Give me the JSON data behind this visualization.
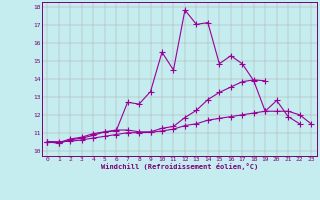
{
  "xlabel": "Windchill (Refroidissement éolien,°C)",
  "ylabel": "",
  "bg_color": "#c5ecee",
  "line_color": "#990099",
  "grid_color": "#b0b0b0",
  "axis_color": "#770077",
  "tick_label_color": "#770077",
  "xlim": [
    -0.5,
    23.5
  ],
  "ylim": [
    9.7,
    18.3
  ],
  "xticks": [
    0,
    1,
    2,
    3,
    4,
    5,
    6,
    7,
    8,
    9,
    10,
    11,
    12,
    13,
    14,
    15,
    16,
    17,
    18,
    19,
    20,
    21,
    22,
    23
  ],
  "yticks": [
    10,
    11,
    12,
    13,
    14,
    15,
    16,
    17,
    18
  ],
  "line1_x": [
    0,
    1,
    2,
    3,
    4,
    5,
    6,
    7,
    8,
    9,
    10,
    11,
    12,
    13,
    14,
    15,
    16,
    17,
    18,
    19,
    20,
    21,
    22
  ],
  "line1_y": [
    10.5,
    10.4,
    10.6,
    10.7,
    10.85,
    11.05,
    11.1,
    12.7,
    12.6,
    13.3,
    15.5,
    14.5,
    17.85,
    17.05,
    17.15,
    14.85,
    15.3,
    14.85,
    13.9,
    12.2,
    12.8,
    11.9,
    11.5
  ],
  "line2_x": [
    0,
    1,
    2,
    3,
    4,
    5,
    6,
    7,
    8,
    9,
    10,
    11,
    12,
    13,
    14,
    15,
    16,
    17,
    18,
    19
  ],
  "line2_y": [
    10.5,
    10.45,
    10.65,
    10.75,
    10.95,
    11.05,
    11.15,
    11.15,
    11.05,
    11.05,
    11.25,
    11.35,
    11.85,
    12.25,
    12.85,
    13.25,
    13.55,
    13.85,
    13.95,
    13.9
  ],
  "line3_x": [
    0,
    1,
    2,
    3,
    4,
    5,
    6,
    7,
    8,
    9,
    10,
    11,
    12,
    13,
    14,
    15,
    16,
    17,
    18,
    19,
    20,
    21,
    22,
    23
  ],
  "line3_y": [
    10.5,
    10.5,
    10.52,
    10.6,
    10.7,
    10.8,
    10.9,
    11.0,
    11.0,
    11.02,
    11.1,
    11.2,
    11.4,
    11.5,
    11.7,
    11.8,
    11.9,
    12.0,
    12.1,
    12.2,
    12.2,
    12.2,
    12.0,
    11.5
  ]
}
